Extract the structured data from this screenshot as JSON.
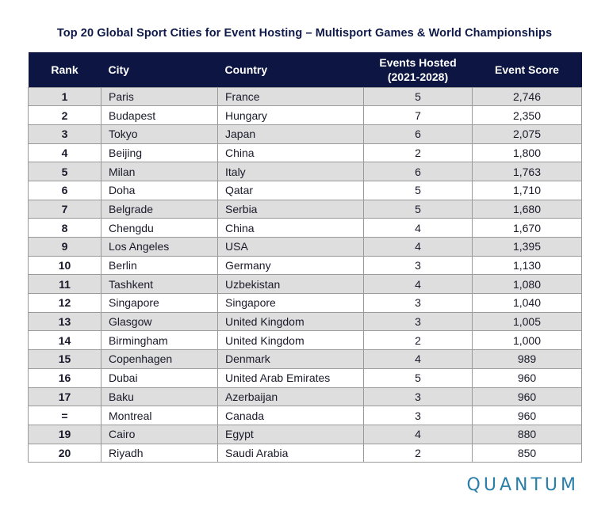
{
  "title": "Top 20 Global Sport Cities for Event Hosting – Multisport Games & World Championships",
  "headers": {
    "rank": "Rank",
    "city": "City",
    "country": "Country",
    "events_line1": "Events Hosted",
    "events_line2": "(2021-2028)",
    "score": "Event Score"
  },
  "rows": [
    {
      "rank": "1",
      "city": "Paris",
      "country": "France",
      "events": "5",
      "score": "2,746"
    },
    {
      "rank": "2",
      "city": "Budapest",
      "country": "Hungary",
      "events": "7",
      "score": "2,350"
    },
    {
      "rank": "3",
      "city": "Tokyo",
      "country": "Japan",
      "events": "6",
      "score": "2,075"
    },
    {
      "rank": "4",
      "city": "Beijing",
      "country": "China",
      "events": "2",
      "score": "1,800"
    },
    {
      "rank": "5",
      "city": "Milan",
      "country": "Italy",
      "events": "6",
      "score": "1,763"
    },
    {
      "rank": "6",
      "city": "Doha",
      "country": "Qatar",
      "events": "5",
      "score": "1,710"
    },
    {
      "rank": "7",
      "city": "Belgrade",
      "country": "Serbia",
      "events": "5",
      "score": "1,680"
    },
    {
      "rank": "8",
      "city": "Chengdu",
      "country": "China",
      "events": "4",
      "score": "1,670"
    },
    {
      "rank": "9",
      "city": "Los Angeles",
      "country": "USA",
      "events": "4",
      "score": "1,395"
    },
    {
      "rank": "10",
      "city": "Berlin",
      "country": "Germany",
      "events": "3",
      "score": "1,130"
    },
    {
      "rank": "11",
      "city": "Tashkent",
      "country": "Uzbekistan",
      "events": "4",
      "score": "1,080"
    },
    {
      "rank": "12",
      "city": "Singapore",
      "country": "Singapore",
      "events": "3",
      "score": "1,040"
    },
    {
      "rank": "13",
      "city": "Glasgow",
      "country": "United Kingdom",
      "events": "3",
      "score": "1,005"
    },
    {
      "rank": "14",
      "city": "Birmingham",
      "country": "United Kingdom",
      "events": "2",
      "score": "1,000"
    },
    {
      "rank": "15",
      "city": "Copenhagen",
      "country": "Denmark",
      "events": "4",
      "score": "989"
    },
    {
      "rank": "16",
      "city": "Dubai",
      "country": "United Arab Emirates",
      "events": "5",
      "score": "960"
    },
    {
      "rank": "17",
      "city": "Baku",
      "country": "Azerbaijan",
      "events": "3",
      "score": "960"
    },
    {
      "rank": "=",
      "city": "Montreal",
      "country": "Canada",
      "events": "3",
      "score": "960"
    },
    {
      "rank": "19",
      "city": "Cairo",
      "country": "Egypt",
      "events": "4",
      "score": "880"
    },
    {
      "rank": "20",
      "city": "Riyadh",
      "country": "Saudi Arabia",
      "events": "2",
      "score": "850"
    }
  ],
  "brand": "QUANTUM",
  "colors": {
    "header_bg": "#0d1642",
    "title": "#0f1a4a",
    "row_shade": "#dedede",
    "brand": "#2a7fa8"
  }
}
